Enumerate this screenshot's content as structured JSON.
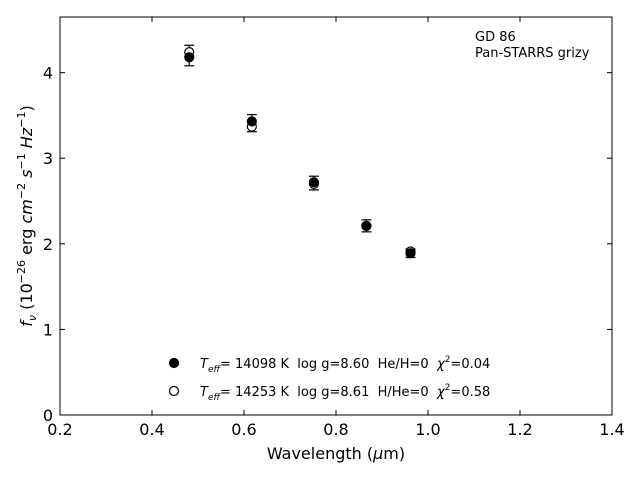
{
  "chart_data": {
    "type": "scatter",
    "xlabel": "Wavelength (μm)",
    "ylabel": "f_ν (10^-26 erg cm^-2 s^-1 Hz^-1)",
    "xlim": [
      0.2,
      1.4
    ],
    "ylim": [
      0,
      4.65
    ],
    "x_ticks": [
      0.2,
      0.4,
      0.6,
      0.8,
      1.0,
      1.2,
      1.4
    ],
    "x_tick_labels": [
      "0.2",
      "0.4",
      "0.6",
      "0.8",
      "1.0",
      "1.2",
      "1.4"
    ],
    "y_ticks": [
      0,
      1,
      2,
      3,
      4
    ],
    "y_tick_labels": [
      "0",
      "1",
      "2",
      "3",
      "4"
    ],
    "grid": false,
    "legend_position": "bottom-center",
    "annotations": [
      "GD 86",
      "Pan-STARRS grizy"
    ],
    "observed": {
      "x": [
        0.481,
        0.617,
        0.752,
        0.866,
        0.962
      ],
      "y": [
        4.2,
        3.41,
        2.71,
        2.21,
        1.89
      ],
      "yerr": [
        0.12,
        0.1,
        0.08,
        0.07,
        0.05
      ]
    },
    "series": [
      {
        "name": "He/H=0 model",
        "marker": "filled-circle",
        "legend": {
          "teff": "= 14098 K",
          "logg": "log g=8.60",
          "comp": "He/H=0",
          "chi2": "=0.04"
        },
        "x": [
          0.481,
          0.617,
          0.752,
          0.866,
          0.962
        ],
        "y": [
          4.18,
          3.43,
          2.72,
          2.21,
          1.89
        ]
      },
      {
        "name": "H/He=0 model",
        "marker": "open-circle",
        "legend": {
          "teff": "= 14253 K",
          "logg": "log g=8.61",
          "comp": "H/He=0",
          "chi2": "=0.58"
        },
        "x": [
          0.481,
          0.617,
          0.752,
          0.866,
          0.962
        ],
        "y": [
          4.24,
          3.37,
          2.7,
          2.21,
          1.91
        ]
      }
    ]
  }
}
